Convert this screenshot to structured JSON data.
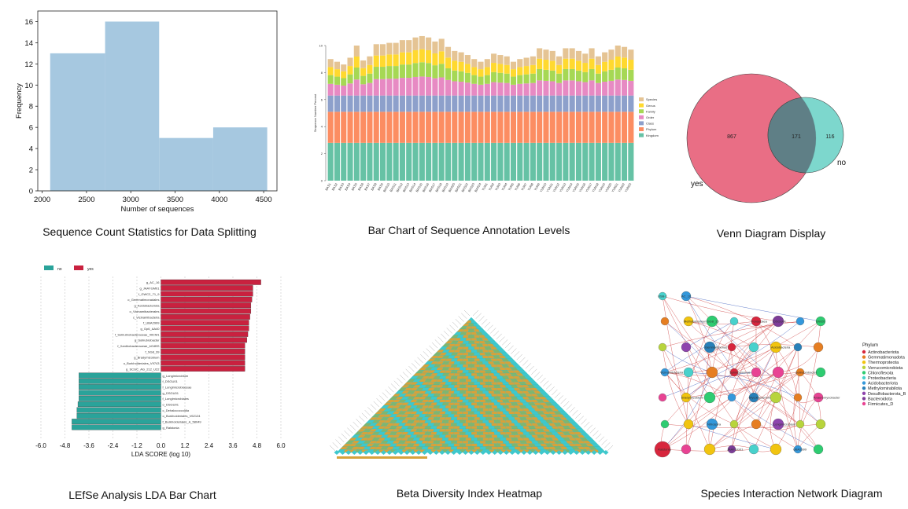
{
  "captions": {
    "hist": "Sequence Count Statistics for Data Splitting",
    "stacked": "Bar Chart of Sequence Annotation Levels",
    "venn": "Venn Diagram Display",
    "lefse": "LEfSe Analysis LDA Bar Chart",
    "heatmap": "Beta Diversity Index Heatmap",
    "network": "Species Interaction Network Diagram"
  },
  "chart_data": [
    {
      "id": "hist",
      "type": "bar",
      "xlabel": "Number of sequences",
      "ylabel": "Frequency",
      "xlim": [
        1950,
        4650
      ],
      "ylim": [
        0,
        17
      ],
      "xticks": [
        "2000",
        "2500",
        "3000",
        "3500",
        "4000",
        "4500"
      ],
      "xtick_values": [
        2000,
        2500,
        3000,
        3500,
        4000,
        4500
      ],
      "yticks": [
        "0",
        "2",
        "4",
        "6",
        "8",
        "10",
        "12",
        "14",
        "16"
      ],
      "ytick_values": [
        0,
        2,
        4,
        6,
        8,
        10,
        12,
        14,
        16
      ],
      "bins": [
        [
          2090,
          2710
        ],
        [
          2710,
          3320
        ],
        [
          3320,
          3930
        ],
        [
          3930,
          4540
        ]
      ],
      "values": [
        13,
        16,
        5,
        6
      ],
      "color": "#a6c8e0"
    },
    {
      "id": "stacked",
      "type": "bar",
      "ylabel": "Sequence Number Percent",
      "ylim": [
        0,
        10
      ],
      "yticks": [
        "0",
        "2",
        "4",
        "6",
        "8",
        "10"
      ],
      "ytick_values": [
        0,
        2,
        4,
        6,
        8,
        10
      ],
      "levels": [
        "Kingdom",
        "Phylum",
        "Class",
        "Order",
        "Family",
        "Genus",
        "Species"
      ],
      "colors": [
        "#66c2a5",
        "#fc8d62",
        "#8da0cb",
        "#e78ac3",
        "#a6d854",
        "#ffd92f",
        "#e5c494"
      ],
      "base": [
        2.8,
        2.3,
        1.2
      ],
      "totals": [
        9.0,
        8.8,
        8.6,
        9.1,
        10.0,
        8.9,
        9.2,
        10.1,
        10.1,
        10.2,
        10.2,
        10.4,
        10.4,
        10.6,
        10.7,
        10.6,
        10.3,
        10.5,
        9.9,
        9.6,
        9.5,
        9.3,
        9.0,
        8.8,
        9.0,
        9.4,
        9.3,
        9.2,
        8.8,
        9.0,
        9.1,
        9.2,
        9.8,
        9.7,
        9.6,
        9.2,
        9.8,
        9.8,
        9.6,
        9.4,
        9.8,
        9.2,
        9.5,
        9.7,
        10.0,
        9.9,
        9.7
      ],
      "x": [
        "BAS1",
        "BAS2",
        "BAS3",
        "BAS4",
        "BAS5",
        "BAS6",
        "BAS7",
        "BAS8",
        "BAS9",
        "BAS10",
        "BAS11",
        "BAS12",
        "BAS13",
        "BAS14",
        "BAS15",
        "BAS16",
        "BAS17",
        "BAS18",
        "BAS19",
        "BAS20",
        "BAS21",
        "BAS22",
        "BAS23",
        "BAS24",
        "YUN1",
        "YUN2",
        "YUN3",
        "YUN4",
        "YUN5",
        "YUN6",
        "YUN7",
        "YUN8",
        "YUN9",
        "YUN10",
        "YUN11",
        "YUN12",
        "YUN13",
        "YUN14",
        "YUN15",
        "YUN16",
        "YUN17",
        "YUN18",
        "YUN19",
        "YUN20",
        "YUN21",
        "YUN22",
        "YUN23"
      ]
    },
    {
      "id": "venn",
      "type": "venn",
      "sets": [
        {
          "name": "yes",
          "only": 867,
          "color": "#e8667e"
        },
        {
          "name": "no",
          "only": 116,
          "color": "#6fd3c8"
        }
      ],
      "intersection": 171
    },
    {
      "id": "lefse",
      "type": "bar",
      "xlabel": "LDA SCORE (log 10)",
      "xlim": [
        -6.0,
        6.0
      ],
      "xticks": [
        "-6.0",
        "-4.8",
        "-3.6",
        "-2.4",
        "-1.2",
        "0.0",
        "1.2",
        "2.4",
        "3.6",
        "4.8",
        "6.0"
      ],
      "xtick_values": [
        -6.0,
        -4.8,
        -3.6,
        -2.4,
        -1.2,
        0.0,
        1.2,
        2.4,
        3.6,
        4.8,
        6.0
      ],
      "legend": [
        {
          "name": "no",
          "color": "#2aa39a"
        },
        {
          "name": "yes",
          "color": "#c9213f"
        }
      ],
      "yes_labels": [
        "g_AC_16",
        "g_JAAYGM01",
        "f_GWC2_71_9",
        "o_Gemmatimonadales",
        "g_Acidobacteriota",
        "o_Vicinamibacterales",
        "c_Vicinamibacteria",
        "f_UBA2999",
        "g_Gp6_AA40",
        "f_Solirubrobacteraceae_40CM1",
        "g_Solirubrobacter",
        "f_Xanthobacteraceae_bG4BS",
        "f_SG8_39",
        "g_Bradyrhizobium",
        "o_Burkholderiales_V9743",
        "g_SCGC_AG_212_U22"
      ],
      "yes_values": [
        5.0,
        4.6,
        4.6,
        4.55,
        4.5,
        4.5,
        4.45,
        4.4,
        4.4,
        4.35,
        4.3,
        4.2,
        4.2,
        4.2,
        4.2,
        4.2
      ],
      "no_labels": [
        "g_Longimicrobium",
        "f_DSGU01",
        "f_Longimicrobiaceae",
        "g_DSGU01",
        "f_Longimicrobiales",
        "o_DSGU01",
        "c_Dehalococcoidia",
        "o_Burkholderiales_V62124",
        "f_Burkholderiales_A_58049",
        "g_Ralstonia"
      ],
      "no_values": [
        -4.1,
        -4.1,
        -4.1,
        -4.1,
        -4.1,
        -4.15,
        -4.2,
        -4.2,
        -4.45,
        -4.45
      ]
    },
    {
      "id": "heatmap",
      "type": "heatmap",
      "colors": [
        "#3fc8cc",
        "#d7a23a",
        "#7fb66f"
      ]
    },
    {
      "id": "network",
      "type": "other",
      "legend_title": "Phylum",
      "phyla": [
        "Actinobacteriota",
        "Gemmatimonadota",
        "Thermoproteota",
        "Verrucomicrobiota",
        "Chloroflexota",
        "Proteobacteria",
        "Acidobacteriota",
        "Methylomirabilota",
        "Desulfobacterota_B",
        "Bacteroidota",
        "Firmicutes_D"
      ],
      "phylum_colors": [
        "#d7263d",
        "#e67e22",
        "#f1c40f",
        "#b8d43c",
        "#2ecc71",
        "#48d1cc",
        "#3498db",
        "#2980b9",
        "#8e44ad",
        "#7d3c98",
        "#e84393"
      ],
      "node_labels": [
        "USB-1",
        "Methylomarinum",
        "Fonsecaea",
        "GW20",
        "Gemmatimonas",
        "Acidobacteria",
        "Vicinamibacteria",
        "Sphingomonas",
        "Solirubrobacter",
        "Bradyrhizobium",
        "Mycobacterium",
        "Anaeromyxobacter",
        "Nitrospira",
        "Longimicrobium",
        "Ralstonia",
        "JAAFGG01",
        "UBA2999",
        "AC_16",
        "SG8_35",
        "DSGU01"
      ]
    }
  ]
}
